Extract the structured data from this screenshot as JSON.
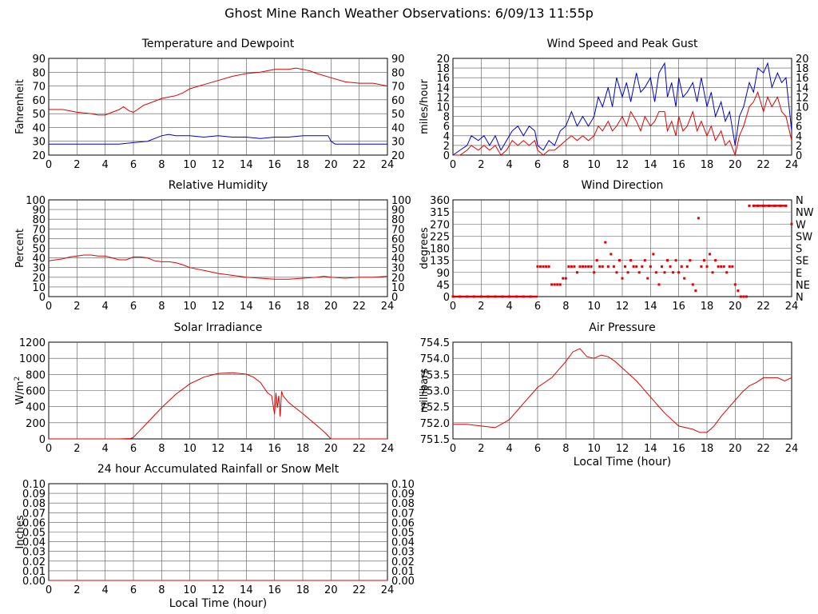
{
  "page": {
    "title": "Ghost Mine Ranch Weather Observations: 6/09/13 11:55p"
  },
  "colors": {
    "red": "#e00000",
    "blue": "#0000cc",
    "grid": "#555555",
    "axis": "#000000"
  },
  "chart_data": [
    {
      "id": "temp",
      "type": "line",
      "title": "Temperature and Dewpoint",
      "ylabel": "Fahrenheit",
      "xlabel": "",
      "xlim": [
        0,
        24
      ],
      "ylim": [
        20,
        90
      ],
      "xticks": [
        "0",
        "2",
        "4",
        "6",
        "8",
        "10",
        "12",
        "14",
        "16",
        "18",
        "20",
        "22",
        "24"
      ],
      "yticks": [
        "20",
        "30",
        "40",
        "50",
        "60",
        "70",
        "80",
        "90"
      ],
      "yticks_right": [
        "20",
        "30",
        "40",
        "50",
        "60",
        "70",
        "80",
        "90"
      ],
      "series": [
        {
          "color": "#e00000",
          "x": [
            0,
            1,
            2,
            3,
            3.5,
            4,
            4.5,
            5,
            5.3,
            5.7,
            6,
            6.3,
            6.7,
            7,
            7.5,
            8,
            8.5,
            9,
            9.5,
            10,
            11,
            12,
            13,
            14,
            15,
            16,
            16.5,
            17,
            17.5,
            18,
            18.5,
            19,
            20,
            21,
            22,
            23,
            24
          ],
          "y": [
            53,
            53,
            51,
            50,
            49,
            49,
            51,
            53,
            55,
            52,
            51,
            53,
            56,
            57,
            59,
            61,
            62,
            63,
            65,
            68,
            71,
            74,
            77,
            79,
            80,
            82,
            82,
            82,
            83,
            82,
            81,
            79,
            76,
            73,
            72,
            72,
            70
          ]
        },
        {
          "color": "#0000cc",
          "x": [
            0,
            1,
            2,
            3,
            4,
            5,
            6,
            7,
            7.5,
            8,
            8.5,
            9,
            10,
            11,
            12,
            13,
            14,
            15,
            16,
            17,
            18,
            19,
            19.8,
            20,
            20.3,
            21,
            22,
            23,
            24
          ],
          "y": [
            28,
            28,
            28,
            28,
            28,
            28,
            29,
            30,
            32,
            34,
            35,
            34,
            34,
            33,
            34,
            33,
            33,
            32,
            33,
            33,
            34,
            34,
            34,
            30,
            28,
            28,
            28,
            28,
            28
          ]
        }
      ]
    },
    {
      "id": "wind",
      "type": "line",
      "title": "Wind Speed and Peak Gust",
      "ylabel": "miles/hour",
      "xlabel": "",
      "xlim": [
        0,
        24
      ],
      "ylim": [
        0,
        20
      ],
      "xticks": [
        "0",
        "2",
        "4",
        "6",
        "8",
        "10",
        "12",
        "14",
        "16",
        "18",
        "20",
        "22",
        "24"
      ],
      "yticks": [
        "0",
        "2",
        "4",
        "6",
        "8",
        "10",
        "12",
        "14",
        "16",
        "18",
        "20"
      ],
      "yticks_right": [
        "0",
        "2",
        "4",
        "6",
        "8",
        "10",
        "12",
        "14",
        "16",
        "18",
        "20"
      ],
      "series": [
        {
          "color": "#0000cc",
          "x": [
            0,
            0.5,
            1,
            1.3,
            1.8,
            2.2,
            2.6,
            3,
            3.4,
            3.8,
            4.2,
            4.6,
            5,
            5.4,
            5.8,
            6,
            6.4,
            6.8,
            7.2,
            7.6,
            8,
            8.4,
            8.8,
            9.2,
            9.6,
            10,
            10.3,
            10.6,
            11,
            11.3,
            11.6,
            12,
            12.3,
            12.6,
            13,
            13.3,
            13.6,
            14,
            14.3,
            14.6,
            15,
            15.2,
            15.5,
            15.8,
            16,
            16.3,
            16.6,
            17,
            17.3,
            17.6,
            18,
            18.3,
            18.6,
            19,
            19.3,
            19.6,
            20,
            20.3,
            20.6,
            21,
            21.3,
            21.6,
            22,
            22.3,
            22.6,
            23,
            23.3,
            23.6,
            24
          ],
          "y": [
            0,
            1,
            2,
            4,
            3,
            4,
            2,
            4,
            1,
            3,
            5,
            6,
            4,
            6,
            5,
            2,
            1,
            3,
            2,
            5,
            6,
            9,
            6,
            8,
            6,
            8,
            12,
            10,
            14,
            10,
            16,
            12,
            15,
            11,
            17,
            13,
            14,
            16,
            11,
            17,
            19,
            12,
            15,
            10,
            16,
            12,
            13,
            15,
            11,
            16,
            10,
            13,
            8,
            11,
            7,
            9,
            2,
            8,
            10,
            15,
            13,
            18,
            17,
            19,
            14,
            17,
            15,
            16,
            5
          ]
        },
        {
          "color": "#e00000",
          "x": [
            0,
            0.5,
            1,
            1.3,
            1.8,
            2.2,
            2.6,
            3,
            3.4,
            3.8,
            4.2,
            4.6,
            5,
            5.4,
            5.8,
            6,
            6.4,
            6.8,
            7.2,
            7.6,
            8,
            8.4,
            8.8,
            9.2,
            9.6,
            10,
            10.3,
            10.6,
            11,
            11.3,
            11.6,
            12,
            12.3,
            12.6,
            13,
            13.3,
            13.6,
            14,
            14.3,
            14.6,
            15,
            15.2,
            15.5,
            15.8,
            16,
            16.3,
            16.6,
            17,
            17.3,
            17.6,
            18,
            18.3,
            18.6,
            19,
            19.3,
            19.6,
            20,
            20.3,
            20.6,
            21,
            21.3,
            21.6,
            22,
            22.3,
            22.6,
            23,
            23.3,
            23.6,
            24
          ],
          "y": [
            0,
            0,
            1,
            2,
            1,
            2,
            1,
            2,
            0,
            1,
            3,
            2,
            3,
            2,
            3,
            1,
            0,
            1,
            1,
            2,
            3,
            4,
            3,
            4,
            3,
            4,
            6,
            5,
            7,
            5,
            6,
            8,
            6,
            9,
            7,
            5,
            8,
            6,
            7,
            9,
            9,
            5,
            7,
            4,
            8,
            5,
            6,
            9,
            5,
            7,
            4,
            6,
            3,
            5,
            2,
            3,
            0,
            4,
            6,
            10,
            11,
            13,
            9,
            12,
            10,
            12,
            9,
            8,
            3
          ]
        }
      ]
    },
    {
      "id": "rh",
      "type": "line",
      "title": "Relative Humidity",
      "ylabel": "Percent",
      "xlabel": "",
      "xlim": [
        0,
        24
      ],
      "ylim": [
        0,
        100
      ],
      "xticks": [
        "0",
        "2",
        "4",
        "6",
        "8",
        "10",
        "12",
        "14",
        "16",
        "18",
        "20",
        "22",
        "24"
      ],
      "yticks": [
        "0",
        "10",
        "20",
        "30",
        "40",
        "50",
        "60",
        "70",
        "80",
        "90",
        "100"
      ],
      "yticks_right": [
        "0",
        "10",
        "20",
        "30",
        "40",
        "50",
        "60",
        "70",
        "80",
        "90",
        "100"
      ],
      "series": [
        {
          "color": "#e00000",
          "x": [
            0,
            0.5,
            1,
            1.5,
            2,
            2.5,
            3,
            3.5,
            4,
            4.5,
            5,
            5.5,
            6,
            6.5,
            7,
            7.5,
            8,
            8.5,
            9,
            9.5,
            10,
            11,
            12,
            13,
            14,
            15,
            16,
            17,
            18,
            19,
            19.5,
            20,
            21,
            22,
            23,
            24
          ],
          "y": [
            37,
            38,
            39,
            41,
            42,
            43,
            43,
            42,
            42,
            40,
            38,
            38,
            41,
            41,
            40,
            37,
            36,
            36,
            35,
            33,
            30,
            27,
            24,
            22,
            20,
            19,
            18,
            18,
            19,
            20,
            21,
            20,
            19,
            20,
            20,
            21
          ]
        }
      ]
    },
    {
      "id": "winddir",
      "type": "scatter",
      "title": "Wind Direction",
      "ylabel": "degrees",
      "xlabel": "",
      "xlim": [
        0,
        24
      ],
      "ylim": [
        0,
        360
      ],
      "xticks": [
        "0",
        "2",
        "4",
        "6",
        "8",
        "10",
        "12",
        "14",
        "16",
        "18",
        "20",
        "22",
        "24"
      ],
      "yticks": [
        "0",
        "45",
        "90",
        "135",
        "180",
        "225",
        "270",
        "315",
        "360"
      ],
      "yticks_right": [
        "N",
        "NE",
        "E",
        "SE",
        "S",
        "SW",
        "W",
        "NW",
        "N"
      ],
      "series": [
        {
          "color": "#e00000",
          "x": [
            0,
            0.5,
            1,
            1.5,
            2,
            2.5,
            3,
            3.5,
            4,
            4.5,
            5,
            5.5,
            6,
            6.2,
            6.4,
            6.6,
            6.8,
            7,
            7.2,
            7.4,
            7.6,
            7.8,
            8,
            8.2,
            8.4,
            8.6,
            8.8,
            9,
            9.2,
            9.4,
            9.6,
            9.8,
            10,
            10.2,
            10.4,
            10.6,
            10.8,
            11,
            11.2,
            11.4,
            11.6,
            11.8,
            12,
            12.2,
            12.4,
            12.6,
            12.8,
            13,
            13.2,
            13.4,
            13.6,
            13.8,
            14,
            14.2,
            14.4,
            14.6,
            14.8,
            15,
            15.2,
            15.4,
            15.6,
            15.8,
            16,
            16.2,
            16.4,
            16.6,
            16.8,
            17,
            17.2,
            17.4,
            17.6,
            17.8,
            18,
            18.2,
            18.4,
            18.6,
            18.8,
            19,
            19.2,
            19.4,
            19.6,
            19.8,
            20,
            20.2,
            20.4,
            20.6,
            20.8,
            21,
            21.3,
            21.6,
            22,
            22.4,
            22.8,
            23.2,
            23.6,
            24
          ],
          "y": [
            0,
            0,
            0,
            0,
            0,
            0,
            0,
            0,
            0,
            0,
            0,
            0,
            112,
            112,
            112,
            112,
            112,
            45,
            45,
            45,
            45,
            68,
            68,
            112,
            112,
            112,
            90,
            112,
            112,
            112,
            112,
            112,
            90,
            135,
            112,
            112,
            202,
            112,
            158,
            112,
            90,
            135,
            68,
            112,
            90,
            135,
            112,
            112,
            90,
            112,
            135,
            68,
            112,
            158,
            90,
            45,
            112,
            90,
            135,
            112,
            90,
            135,
            90,
            112,
            68,
            112,
            135,
            45,
            22,
            292,
            112,
            135,
            112,
            158,
            90,
            135,
            112,
            112,
            112,
            90,
            112,
            112,
            45,
            22,
            0,
            0,
            0,
            338,
            338,
            338,
            338,
            338,
            338,
            338,
            338,
            270
          ]
        }
      ]
    },
    {
      "id": "solar",
      "type": "line",
      "title": "Solar Irradiance",
      "ylabel": "W/m2",
      "xlabel": "",
      "xlim": [
        0,
        24
      ],
      "ylim": [
        0,
        1300
      ],
      "xticks": [
        "0",
        "2",
        "4",
        "6",
        "8",
        "10",
        "12",
        "14",
        "16",
        "18",
        "20",
        "22",
        "24"
      ],
      "yticks": [
        "0",
        "200",
        "400",
        "600",
        "800",
        "1000",
        "1200"
      ],
      "yticks_right": [],
      "series": [
        {
          "color": "#e00000",
          "x": [
            0,
            5,
            5.8,
            6,
            6.5,
            7,
            8,
            9,
            10,
            11,
            12,
            13,
            14,
            14.5,
            15,
            15.5,
            15.8,
            16,
            16.1,
            16.2,
            16.3,
            16.4,
            16.5,
            16.6,
            17,
            18,
            19,
            19.6,
            20,
            24
          ],
          "y": [
            0,
            0,
            5,
            20,
            120,
            220,
            420,
            600,
            740,
            830,
            880,
            890,
            870,
            830,
            760,
            620,
            580,
            330,
            620,
            420,
            580,
            300,
            640,
            580,
            490,
            340,
            180,
            80,
            0,
            0
          ]
        }
      ]
    },
    {
      "id": "pressure",
      "type": "line",
      "title": "Air Pressure",
      "ylabel": "millibars",
      "xlabel": "Local Time (hour)",
      "xlim": [
        0,
        24
      ],
      "ylim": [
        751.5,
        754.5
      ],
      "xticks": [
        "0",
        "2",
        "4",
        "6",
        "8",
        "10",
        "12",
        "14",
        "16",
        "18",
        "20",
        "22",
        "24"
      ],
      "yticks": [
        "751.5",
        "752.0",
        "752.5",
        "753.0",
        "753.5",
        "754.0",
        "754.5"
      ],
      "yticks_right": [],
      "series": [
        {
          "color": "#e00000",
          "x": [
            0,
            1,
            2,
            3,
            4,
            5,
            6,
            7,
            8,
            8.5,
            9,
            9.5,
            10,
            10.5,
            11,
            11.5,
            12,
            13,
            14,
            15,
            16,
            17,
            17.5,
            18,
            18.5,
            19,
            20,
            20.5,
            21,
            21.5,
            22,
            23,
            23.5,
            24
          ],
          "y": [
            751.95,
            751.95,
            751.9,
            751.85,
            752.1,
            752.6,
            753.1,
            753.4,
            753.9,
            754.2,
            754.3,
            754.05,
            754.0,
            754.1,
            754.05,
            753.9,
            753.7,
            753.3,
            752.8,
            752.3,
            751.9,
            751.8,
            751.7,
            751.7,
            751.9,
            752.2,
            752.7,
            752.95,
            753.15,
            753.25,
            753.4,
            753.4,
            753.3,
            753.4
          ]
        }
      ]
    },
    {
      "id": "rain",
      "type": "line",
      "title": "24 hour Accumulated Rainfall or Snow Melt",
      "ylabel": "Inches",
      "xlabel": "Local Time (hour)",
      "xlim": [
        0,
        24
      ],
      "ylim": [
        0,
        0.1
      ],
      "xticks": [
        "0",
        "2",
        "4",
        "6",
        "8",
        "10",
        "12",
        "14",
        "16",
        "18",
        "20",
        "22",
        "24"
      ],
      "yticks": [
        "0.00",
        "0.01",
        "0.02",
        "0.03",
        "0.04",
        "0.05",
        "0.06",
        "0.07",
        "0.08",
        "0.09",
        "0.10"
      ],
      "yticks_right": [
        "0.00",
        "0.01",
        "0.02",
        "0.03",
        "0.04",
        "0.05",
        "0.06",
        "0.07",
        "0.08",
        "0.09",
        "0.10"
      ],
      "series": [
        {
          "color": "#e00000",
          "x": [
            0,
            24
          ],
          "y": [
            0,
            0
          ]
        }
      ]
    }
  ]
}
